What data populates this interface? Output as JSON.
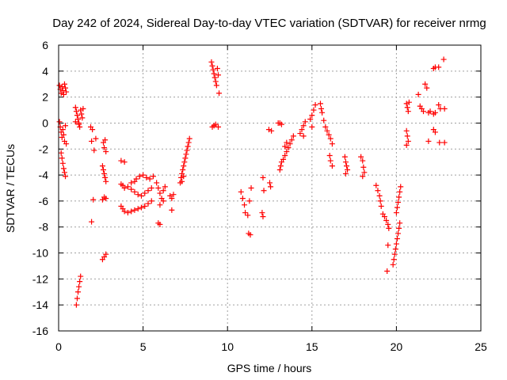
{
  "chart_data": {
    "type": "scatter",
    "title": "Day 242 of 2024, Sidereal Day-to-day VTEC variation (SDTVAR) for receiver nrmg",
    "xlabel": "GPS time / hours",
    "ylabel": "SDTVAR / TECUs",
    "xlim": [
      0,
      25
    ],
    "ylim": [
      -16,
      6
    ],
    "xticks": [
      0,
      5,
      10,
      15,
      20,
      25
    ],
    "yticks": [
      -16,
      -14,
      -12,
      -10,
      -8,
      -6,
      -4,
      -2,
      0,
      2,
      4,
      6
    ],
    "grid": true,
    "marker": "+",
    "marker_color": "#ff0000",
    "series": [
      {
        "name": "SDTVAR",
        "points": [
          [
            0.05,
            2.9
          ],
          [
            0.1,
            2.6
          ],
          [
            0.15,
            2.3
          ],
          [
            0.2,
            2.8
          ],
          [
            0.25,
            2.5
          ],
          [
            0.3,
            2.2
          ],
          [
            0.35,
            3.0
          ],
          [
            0.4,
            2.7
          ],
          [
            0.45,
            2.4
          ],
          [
            0.05,
            0.1
          ],
          [
            0.1,
            -0.3
          ],
          [
            0.15,
            -0.7
          ],
          [
            0.2,
            -1.1
          ],
          [
            0.25,
            -0.5
          ],
          [
            0.3,
            -0.9
          ],
          [
            0.35,
            -1.4
          ],
          [
            0.4,
            -0.2
          ],
          [
            0.45,
            -1.6
          ],
          [
            0.15,
            -2.3
          ],
          [
            0.2,
            -2.7
          ],
          [
            0.25,
            -3.1
          ],
          [
            0.3,
            -3.5
          ],
          [
            0.35,
            -3.8
          ],
          [
            0.4,
            -4.1
          ],
          [
            1.0,
            1.2
          ],
          [
            1.05,
            0.9
          ],
          [
            1.1,
            0.6
          ],
          [
            1.15,
            0.3
          ],
          [
            1.2,
            0.0
          ],
          [
            1.25,
            -0.3
          ],
          [
            1.3,
            1.0
          ],
          [
            1.35,
            0.7
          ],
          [
            1.4,
            0.4
          ],
          [
            1.45,
            1.1
          ],
          [
            1.0,
            0.1
          ],
          [
            1.2,
            -0.1
          ],
          [
            1.05,
            -14.0
          ],
          [
            1.1,
            -13.5
          ],
          [
            1.15,
            -13.0
          ],
          [
            1.2,
            -12.6
          ],
          [
            1.25,
            -12.2
          ],
          [
            1.3,
            -11.8
          ],
          [
            1.9,
            -0.3
          ],
          [
            2.0,
            -0.5
          ],
          [
            1.95,
            -1.4
          ],
          [
            2.1,
            -2.1
          ],
          [
            2.2,
            -1.2
          ],
          [
            1.95,
            -7.6
          ],
          [
            2.05,
            -5.9
          ],
          [
            2.65,
            -1.5
          ],
          [
            2.7,
            -1.9
          ],
          [
            2.75,
            -1.3
          ],
          [
            2.8,
            -2.2
          ],
          [
            2.6,
            -3.3
          ],
          [
            2.65,
            -3.6
          ],
          [
            2.7,
            -3.9
          ],
          [
            2.75,
            -4.2
          ],
          [
            2.8,
            -4.5
          ],
          [
            2.6,
            -5.9
          ],
          [
            2.7,
            -5.7
          ],
          [
            2.8,
            -5.8
          ],
          [
            2.6,
            -10.5
          ],
          [
            2.7,
            -10.3
          ],
          [
            2.8,
            -10.1
          ],
          [
            3.7,
            -2.9
          ],
          [
            3.9,
            -3.0
          ],
          [
            3.7,
            -4.7
          ],
          [
            3.8,
            -4.8
          ],
          [
            3.9,
            -5.0
          ],
          [
            3.7,
            -6.4
          ],
          [
            3.8,
            -6.6
          ],
          [
            3.9,
            -6.8
          ],
          [
            4.1,
            -6.9
          ],
          [
            4.1,
            -4.9
          ],
          [
            4.3,
            -5.1
          ],
          [
            4.5,
            -5.3
          ],
          [
            4.7,
            -5.5
          ],
          [
            4.9,
            -5.6
          ],
          [
            5.1,
            -5.4
          ],
          [
            5.3,
            -5.2
          ],
          [
            5.5,
            -5.0
          ],
          [
            4.3,
            -6.8
          ],
          [
            4.5,
            -6.7
          ],
          [
            4.7,
            -6.6
          ],
          [
            4.9,
            -6.5
          ],
          [
            5.1,
            -6.4
          ],
          [
            5.3,
            -6.2
          ],
          [
            5.5,
            -6.0
          ],
          [
            4.6,
            -4.3
          ],
          [
            4.8,
            -4.1
          ],
          [
            5.0,
            -4.0
          ],
          [
            5.2,
            -4.2
          ],
          [
            5.4,
            -4.3
          ],
          [
            5.6,
            -4.1
          ],
          [
            4.3,
            -4.6
          ],
          [
            4.5,
            -4.5
          ],
          [
            5.8,
            -4.6
          ],
          [
            5.9,
            -5.0
          ],
          [
            6.0,
            -5.4
          ],
          [
            6.1,
            -5.8
          ],
          [
            6.2,
            -5.2
          ],
          [
            6.3,
            -4.9
          ],
          [
            6.2,
            -6.0
          ],
          [
            6.0,
            -6.3
          ],
          [
            5.9,
            -7.7
          ],
          [
            6.0,
            -7.8
          ],
          [
            6.6,
            -5.6
          ],
          [
            6.7,
            -5.8
          ],
          [
            6.8,
            -5.5
          ],
          [
            6.7,
            -6.7
          ],
          [
            7.2,
            -4.6
          ],
          [
            7.25,
            -4.2
          ],
          [
            7.3,
            -3.9
          ],
          [
            7.35,
            -3.6
          ],
          [
            7.4,
            -3.3
          ],
          [
            7.45,
            -3.0
          ],
          [
            7.5,
            -2.7
          ],
          [
            7.55,
            -2.4
          ],
          [
            7.6,
            -2.1
          ],
          [
            7.65,
            -1.8
          ],
          [
            7.7,
            -1.5
          ],
          [
            7.75,
            -1.2
          ],
          [
            7.3,
            -4.5
          ],
          [
            7.4,
            -4.1
          ],
          [
            9.05,
            4.7
          ],
          [
            9.1,
            4.4
          ],
          [
            9.15,
            4.1
          ],
          [
            9.2,
            3.8
          ],
          [
            9.25,
            3.5
          ],
          [
            9.3,
            3.2
          ],
          [
            9.35,
            2.9
          ],
          [
            9.4,
            4.2
          ],
          [
            9.45,
            3.7
          ],
          [
            9.5,
            2.3
          ],
          [
            9.1,
            -0.3
          ],
          [
            9.2,
            -0.2
          ],
          [
            9.3,
            -0.1
          ],
          [
            9.45,
            -0.3
          ],
          [
            10.8,
            -5.3
          ],
          [
            10.9,
            -5.8
          ],
          [
            11.0,
            -6.3
          ],
          [
            11.05,
            -6.9
          ],
          [
            11.4,
            -5.0
          ],
          [
            11.3,
            -6.0
          ],
          [
            11.2,
            -7.1
          ],
          [
            11.35,
            -8.6
          ],
          [
            11.25,
            -8.5
          ],
          [
            12.1,
            -4.2
          ],
          [
            12.15,
            -5.2
          ],
          [
            12.05,
            -6.9
          ],
          [
            12.1,
            -7.2
          ],
          [
            12.5,
            -4.6
          ],
          [
            12.55,
            -4.9
          ],
          [
            12.45,
            -0.5
          ],
          [
            12.6,
            -0.6
          ],
          [
            13.1,
            -3.6
          ],
          [
            13.15,
            -3.3
          ],
          [
            13.2,
            -3.0
          ],
          [
            13.3,
            -2.8
          ],
          [
            13.4,
            -2.5
          ],
          [
            13.5,
            -2.2
          ],
          [
            13.6,
            -1.9
          ],
          [
            13.7,
            -1.6
          ],
          [
            13.8,
            -1.3
          ],
          [
            13.9,
            -1.0
          ],
          [
            13.0,
            -0.0
          ],
          [
            13.1,
            0.0
          ],
          [
            13.2,
            -0.1
          ],
          [
            13.4,
            -1.8
          ],
          [
            13.5,
            -1.5
          ],
          [
            14.3,
            -0.8
          ],
          [
            14.4,
            -0.5
          ],
          [
            14.5,
            -0.2
          ],
          [
            14.6,
            0.1
          ],
          [
            14.5,
            -1.0
          ],
          [
            14.9,
            0.3
          ],
          [
            15.0,
            0.6
          ],
          [
            15.1,
            1.0
          ],
          [
            15.2,
            1.4
          ],
          [
            15.0,
            -0.3
          ],
          [
            15.5,
            1.5
          ],
          [
            15.55,
            1.1
          ],
          [
            15.6,
            0.8
          ],
          [
            15.7,
            0.2
          ],
          [
            15.8,
            -0.3
          ],
          [
            15.9,
            -0.6
          ],
          [
            16.0,
            -0.9
          ],
          [
            16.1,
            -1.2
          ],
          [
            16.2,
            -1.6
          ],
          [
            16.05,
            -2.5
          ],
          [
            16.1,
            -2.9
          ],
          [
            16.2,
            -3.3
          ],
          [
            16.95,
            -2.6
          ],
          [
            17.0,
            -3.0
          ],
          [
            17.05,
            -3.3
          ],
          [
            17.1,
            -3.6
          ],
          [
            17.0,
            -3.9
          ],
          [
            17.9,
            -2.6
          ],
          [
            18.0,
            -2.9
          ],
          [
            18.05,
            -3.4
          ],
          [
            18.1,
            -3.8
          ],
          [
            18.0,
            -4.1
          ],
          [
            18.8,
            -4.8
          ],
          [
            18.9,
            -5.2
          ],
          [
            19.0,
            -5.6
          ],
          [
            19.05,
            -6.0
          ],
          [
            19.1,
            -6.4
          ],
          [
            19.2,
            -7.0
          ],
          [
            19.3,
            -7.2
          ],
          [
            19.4,
            -7.5
          ],
          [
            19.5,
            -7.8
          ],
          [
            19.55,
            -8.1
          ],
          [
            19.5,
            -9.4
          ],
          [
            19.45,
            -11.4
          ],
          [
            19.8,
            -10.9
          ],
          [
            19.85,
            -10.5
          ],
          [
            19.9,
            -10.1
          ],
          [
            19.95,
            -9.7
          ],
          [
            20.0,
            -9.3
          ],
          [
            20.05,
            -8.9
          ],
          [
            20.1,
            -8.5
          ],
          [
            20.15,
            -8.1
          ],
          [
            20.2,
            -7.7
          ],
          [
            20.0,
            -6.9
          ],
          [
            20.05,
            -6.5
          ],
          [
            20.1,
            -6.1
          ],
          [
            20.15,
            -5.7
          ],
          [
            20.2,
            -5.3
          ],
          [
            20.25,
            -4.9
          ],
          [
            20.6,
            1.5
          ],
          [
            20.65,
            1.2
          ],
          [
            20.7,
            0.9
          ],
          [
            20.75,
            1.6
          ],
          [
            20.6,
            -0.6
          ],
          [
            20.65,
            -1.0
          ],
          [
            20.7,
            -1.4
          ],
          [
            20.6,
            -1.7
          ],
          [
            21.3,
            2.2
          ],
          [
            21.4,
            1.3
          ],
          [
            21.5,
            1.1
          ],
          [
            21.6,
            0.9
          ],
          [
            21.7,
            3.0
          ],
          [
            21.8,
            2.7
          ],
          [
            21.9,
            0.8
          ],
          [
            22.0,
            0.9
          ],
          [
            21.9,
            -1.4
          ],
          [
            22.2,
            -0.5
          ],
          [
            22.3,
            -0.7
          ],
          [
            22.2,
            0.7
          ],
          [
            22.3,
            0.8
          ],
          [
            22.2,
            4.2
          ],
          [
            22.3,
            4.3
          ],
          [
            22.5,
            4.3
          ],
          [
            22.8,
            4.9
          ],
          [
            22.5,
            1.4
          ],
          [
            22.6,
            1.1
          ],
          [
            22.85,
            1.1
          ],
          [
            22.55,
            -1.5
          ],
          [
            22.85,
            -1.5
          ]
        ]
      }
    ]
  }
}
